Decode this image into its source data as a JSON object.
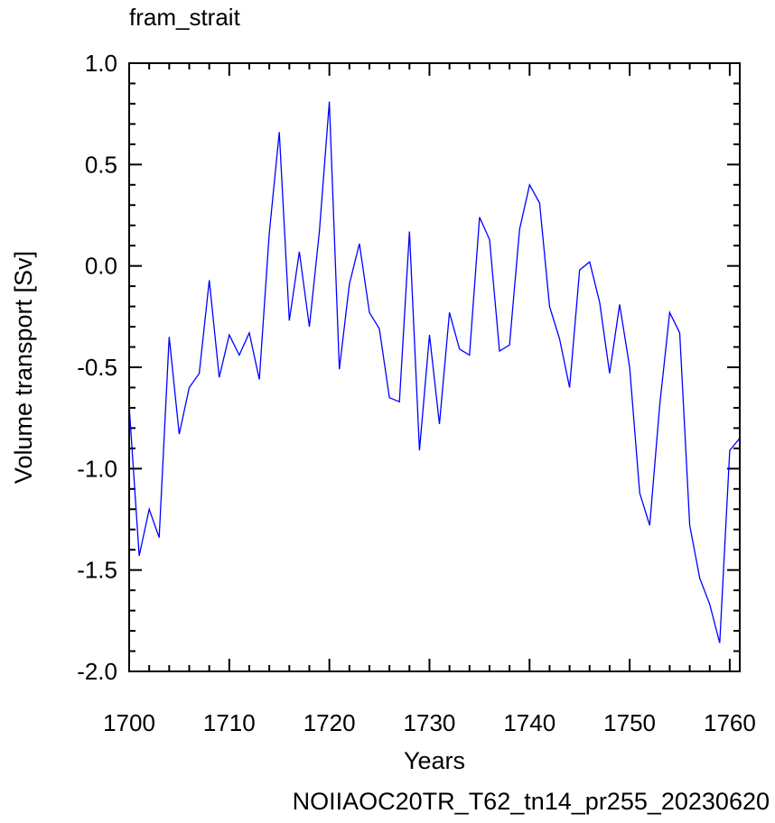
{
  "chart_data": {
    "type": "line",
    "title": "fram_strait",
    "xlabel": "Years",
    "ylabel": "Volume transport [Sv]",
    "footer": "NOIIAOC20TR_T62_tn14_pr255_20230620",
    "xlim": [
      1700,
      1761
    ],
    "ylim": [
      -2.0,
      1.0
    ],
    "x_ticks": [
      1700,
      1710,
      1720,
      1730,
      1740,
      1750,
      1760
    ],
    "x_tick_labels": [
      "1700",
      "1710",
      "1720",
      "1730",
      "1740",
      "1750",
      "1760"
    ],
    "y_ticks": [
      -2.0,
      -1.5,
      -1.0,
      -0.5,
      0.0,
      0.5,
      1.0
    ],
    "y_tick_labels": [
      "-2.0",
      "-1.5",
      "-1.0",
      "-0.5",
      "0.0",
      "0.5",
      "1.0"
    ],
    "grid": false,
    "colors": {
      "line": "#0000ff",
      "footer": "#0000ff",
      "axis": "#000000"
    },
    "x": [
      1700,
      1701,
      1702,
      1703,
      1704,
      1705,
      1706,
      1707,
      1708,
      1709,
      1710,
      1711,
      1712,
      1713,
      1714,
      1715,
      1716,
      1717,
      1718,
      1719,
      1720,
      1721,
      1722,
      1723,
      1724,
      1725,
      1726,
      1727,
      1728,
      1729,
      1730,
      1731,
      1732,
      1733,
      1734,
      1735,
      1736,
      1737,
      1738,
      1739,
      1740,
      1741,
      1742,
      1743,
      1744,
      1745,
      1746,
      1747,
      1748,
      1749,
      1750,
      1751,
      1752,
      1753,
      1754,
      1755,
      1756,
      1757,
      1758,
      1759,
      1760,
      1761
    ],
    "series": [
      {
        "values": [
          -0.69,
          -1.43,
          -1.2,
          -1.34,
          -0.35,
          -0.83,
          -0.6,
          -0.53,
          -0.07,
          -0.55,
          -0.34,
          -0.44,
          -0.33,
          -0.56,
          0.16,
          0.66,
          -0.27,
          0.07,
          -0.3,
          0.17,
          0.81,
          -0.51,
          -0.09,
          0.11,
          -0.23,
          -0.31,
          -0.65,
          -0.67,
          0.17,
          -0.91,
          -0.34,
          -0.78,
          -0.23,
          -0.41,
          -0.44,
          0.24,
          0.13,
          -0.42,
          -0.39,
          0.18,
          0.4,
          0.31,
          -0.2,
          -0.36,
          -0.6,
          -0.02,
          0.02,
          -0.18,
          -0.53,
          -0.19,
          -0.5,
          -1.12,
          -1.28,
          -0.69,
          -0.23,
          -0.33,
          -1.28,
          -1.54,
          -1.67,
          -1.86,
          -0.91,
          -0.85
        ]
      }
    ]
  }
}
